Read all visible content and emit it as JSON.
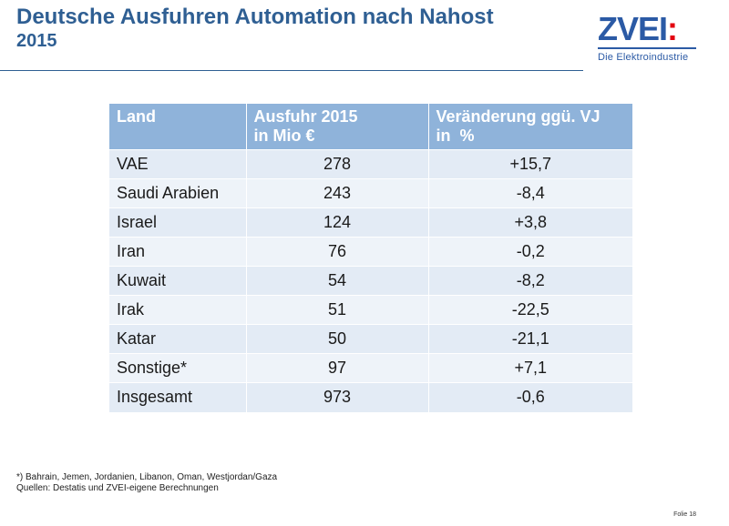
{
  "title": {
    "line1": "Deutsche Ausfuhren Automation nach Nahost",
    "line2": "2015"
  },
  "logo": {
    "mark": "ZVEI",
    "colon": ":",
    "subtitle": "Die Elektroindustrie"
  },
  "table": {
    "headers": {
      "land": "Land",
      "ausfuhr_line1": "Ausfuhr 2015",
      "ausfuhr_line2": "in Mio €",
      "veraenderung_line1": "Veränderung ggü. VJ",
      "veraenderung_line2": "in  %"
    },
    "rows": [
      {
        "land": "VAE",
        "ausfuhr": "278",
        "veraenderung": "+15,7"
      },
      {
        "land": "Saudi Arabien",
        "ausfuhr": "243",
        "veraenderung": "-8,4"
      },
      {
        "land": "Israel",
        "ausfuhr": "124",
        "veraenderung": "+3,8"
      },
      {
        "land": "Iran",
        "ausfuhr": "76",
        "veraenderung": "-0,2"
      },
      {
        "land": "Kuwait",
        "ausfuhr": "54",
        "veraenderung": "-8,2"
      },
      {
        "land": "Irak",
        "ausfuhr": "51",
        "veraenderung": "-22,5"
      },
      {
        "land": "Katar",
        "ausfuhr": "50",
        "veraenderung": "-21,1"
      },
      {
        "land": "Sonstige*",
        "ausfuhr": "97",
        "veraenderung": "+7,1"
      },
      {
        "land": "Insgesamt",
        "ausfuhr": "973",
        "veraenderung": "-0,6"
      }
    ]
  },
  "footnote": {
    "line1": "*) Bahrain, Jemen, Jordanien, Libanon, Oman, Westjordan/Gaza",
    "line2": "Quellen: Destatis und ZVEI-eigene Berechnungen"
  },
  "slide_number": "Folie 18",
  "colors": {
    "title": "#2f5f93",
    "header_bg": "#8fb3da",
    "row_bg": "#e3ebf5",
    "logo_blue": "#2b5aa5",
    "logo_red": "#e3000f"
  }
}
